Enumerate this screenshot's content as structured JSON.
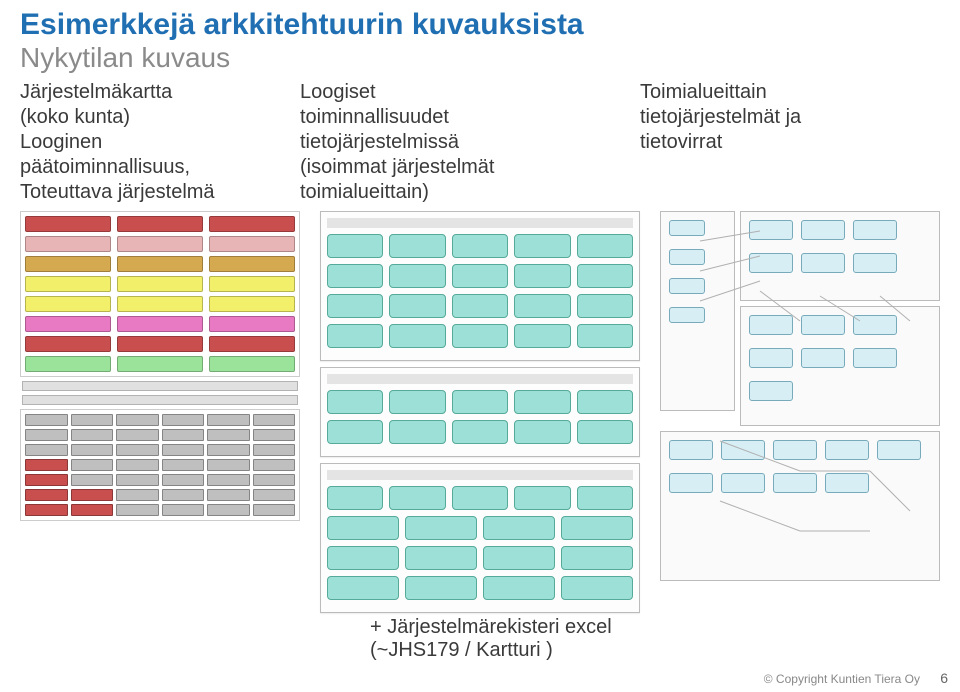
{
  "title": {
    "text": "Esimerkkejä arkkitehtuurin kuvauksista",
    "color": "#1f6fb2",
    "fontsize": 30
  },
  "subtitle": {
    "text": "Nykytilan kuvaus",
    "color": "#8a8a8a",
    "fontsize": 28
  },
  "columns": [
    {
      "lines": [
        "Järjestelmäkartta",
        "(koko kunta)",
        "Looginen",
        "päätoiminnallisuus,",
        "Toteuttava järjestelmä"
      ]
    },
    {
      "lines": [
        "Loogiset",
        "toiminnallisuudet",
        "tietojärjestelmissä",
        "(isoimmat järjestelmät",
        "toimialueittain)"
      ]
    },
    {
      "lines": [
        "Toimialueittain",
        "tietojärjestelmät ja",
        "tietovirrat"
      ]
    }
  ],
  "diagram1": {
    "type": "infographic",
    "top_grid_colors": [
      "#c94f4f",
      "#c94f4f",
      "#c94f4f",
      "#e7b5b5",
      "#e7b5b5",
      "#e7b5b5",
      "#d4a94f",
      "#d4a94f",
      "#d4a94f",
      "#f2f06a",
      "#f2f06a",
      "#f2f06a",
      "#f2f06a",
      "#f2f06a",
      "#f2f06a",
      "#e879c3",
      "#e879c3",
      "#e879c3",
      "#c94f4f",
      "#c94f4f",
      "#c94f4f",
      "#9be39b",
      "#9be39b",
      "#9be39b"
    ],
    "band_colors": [
      "#e0e0e0",
      "#e0e0e0"
    ],
    "bottom_grid_colors": [
      "#bfbfbf",
      "#bfbfbf",
      "#bfbfbf",
      "#bfbfbf",
      "#bfbfbf",
      "#bfbfbf",
      "#bfbfbf",
      "#bfbfbf",
      "#bfbfbf",
      "#bfbfbf",
      "#bfbfbf",
      "#bfbfbf",
      "#bfbfbf",
      "#bfbfbf",
      "#bfbfbf",
      "#bfbfbf",
      "#bfbfbf",
      "#bfbfbf",
      "#c94f4f",
      "#bfbfbf",
      "#bfbfbf",
      "#bfbfbf",
      "#bfbfbf",
      "#bfbfbf",
      "#c94f4f",
      "#bfbfbf",
      "#bfbfbf",
      "#bfbfbf",
      "#bfbfbf",
      "#bfbfbf",
      "#c94f4f",
      "#c94f4f",
      "#bfbfbf",
      "#bfbfbf",
      "#bfbfbf",
      "#bfbfbf",
      "#c94f4f",
      "#c94f4f",
      "#bfbfbf",
      "#bfbfbf",
      "#bfbfbf",
      "#bfbfbf"
    ]
  },
  "diagram2": {
    "type": "flowchart",
    "node_fill": "#9de0d8",
    "node_border": "#55aa99",
    "panel_border": "#bbbbbb",
    "panels": [
      {
        "rows": [
          5,
          5,
          5,
          5
        ]
      },
      {
        "rows": [
          5,
          5
        ]
      },
      {
        "rows": [
          5,
          4,
          4,
          4
        ]
      }
    ]
  },
  "diagram3": {
    "type": "network",
    "node_fill": "#d7eef5",
    "node_border": "#77aabb",
    "edge_color": "#b0b0b0",
    "panels": [
      {
        "nodes": 4
      },
      {
        "nodes": 6
      },
      {
        "nodes": 7
      },
      {
        "nodes": 9
      }
    ],
    "edges": [
      [
        40,
        30,
        100,
        20
      ],
      [
        40,
        60,
        100,
        45
      ],
      [
        40,
        90,
        100,
        70
      ],
      [
        100,
        80,
        140,
        110
      ],
      [
        160,
        85,
        200,
        110
      ],
      [
        220,
        85,
        250,
        110
      ],
      [
        60,
        230,
        140,
        260
      ],
      [
        140,
        260,
        210,
        260
      ],
      [
        210,
        260,
        250,
        300
      ],
      [
        60,
        290,
        140,
        320
      ],
      [
        140,
        320,
        210,
        320
      ]
    ]
  },
  "footer_note": "+ Järjestelmärekisteri excel\n(~JHS179 / Kartturi )",
  "copyright": "© Copyright Kuntien Tiera Oy",
  "page_number": "6",
  "colors": {
    "text": "#3a3a3a",
    "muted": "#888888"
  }
}
